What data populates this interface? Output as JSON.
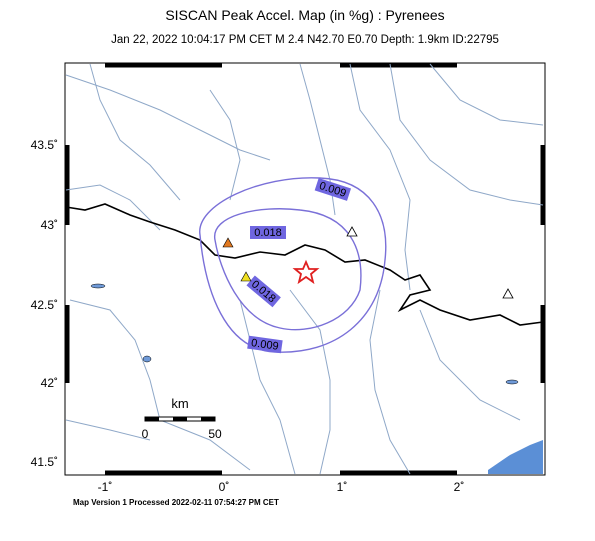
{
  "title": "SISCAN Peak Accel. Map (in %g) : Pyrenees",
  "subtitle": "Jan 22, 2022 10:04:17 PM CET   M 2.4   N42.70 E0.70   Depth: 1.9km   ID:22795",
  "contour_labels": [
    "0.009",
    "0.018",
    "0.018",
    "0.009"
  ],
  "scale_bar": {
    "unit": "km",
    "labels": [
      "0",
      "50"
    ]
  },
  "lat_labels": [
    "43.5˚",
    "43˚",
    "42.5˚",
    "42˚",
    "41.5˚"
  ],
  "lon_labels": [
    "-1˚",
    "0˚",
    "1˚",
    "2˚"
  ],
  "footer": "Map Version 1 Processed 2022-02-11 07:54:27 PM CET"
}
